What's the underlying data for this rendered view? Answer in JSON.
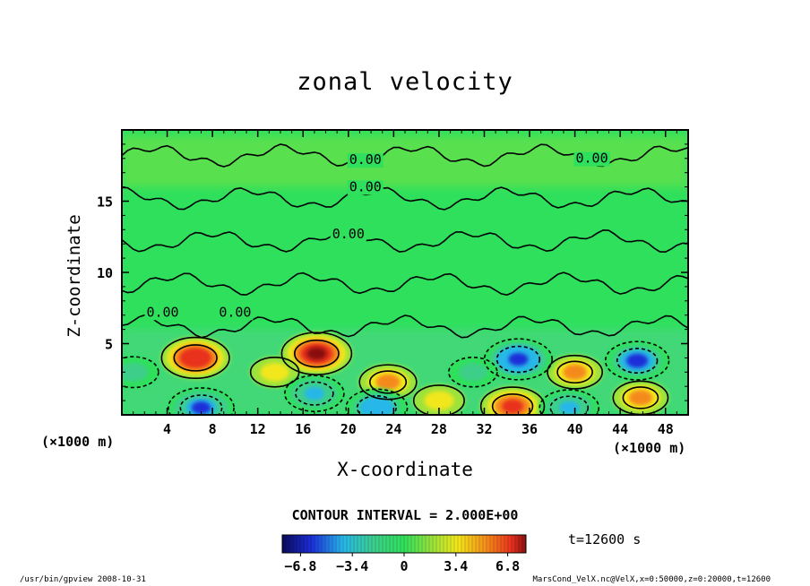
{
  "chart_data": {
    "type": "heatmap",
    "title": "zonal velocity",
    "xlabel": "X-coordinate",
    "ylabel": "Z-coordinate",
    "x_unit": "(×1000 m)",
    "y_unit": "(×1000 m)",
    "xlim": [
      0,
      50
    ],
    "ylim": [
      0,
      20
    ],
    "x_ticks": [
      4,
      8,
      12,
      16,
      20,
      24,
      28,
      32,
      36,
      40,
      44,
      48
    ],
    "y_ticks": [
      5,
      10,
      15
    ],
    "contour_interval_label": "CONTOUR INTERVAL = 2.000E+00",
    "time_label": "t=12600 s",
    "colorbar": {
      "min": -8.0,
      "max": 8.0,
      "ticks": [
        "−6.8",
        "−3.4",
        "0",
        "3.4",
        "6.8"
      ]
    },
    "contour_labels": [
      "0.00",
      "0.00",
      "0.00",
      "0.00",
      "0.00",
      "0.00"
    ],
    "features": [
      {
        "x": 6.5,
        "z": 4.0,
        "value": 7.0
      },
      {
        "x": 17.2,
        "z": 4.3,
        "value": 7.5
      },
      {
        "x": 23.5,
        "z": 2.3,
        "value": 4.5
      },
      {
        "x": 34.5,
        "z": 0.6,
        "value": 6.0
      },
      {
        "x": 40.0,
        "z": 3.0,
        "value": 4.0
      },
      {
        "x": 45.8,
        "z": 1.2,
        "value": 4.0
      },
      {
        "x": 28.0,
        "z": 1.0,
        "value": 3.0
      },
      {
        "x": 13.5,
        "z": 3.0,
        "value": 2.5
      },
      {
        "x": 35.0,
        "z": 3.9,
        "value": -7.0
      },
      {
        "x": 45.5,
        "z": 3.8,
        "value": -6.0
      },
      {
        "x": 17.0,
        "z": 1.5,
        "value": -5.0
      },
      {
        "x": 7.0,
        "z": 0.5,
        "value": -6.5
      },
      {
        "x": 22.5,
        "z": 0.5,
        "value": -5.5
      },
      {
        "x": 39.5,
        "z": 0.5,
        "value": -5.0
      },
      {
        "x": 1.0,
        "z": 3.0,
        "value": -3.0
      },
      {
        "x": 31.0,
        "z": 3.0,
        "value": -2.5
      }
    ]
  },
  "footer": {
    "left": "/usr/bin/gpview   2008-10-31",
    "right": "MarsCond_VelX.nc@VelX,x=0:50000,z=0:20000,t=12600"
  }
}
